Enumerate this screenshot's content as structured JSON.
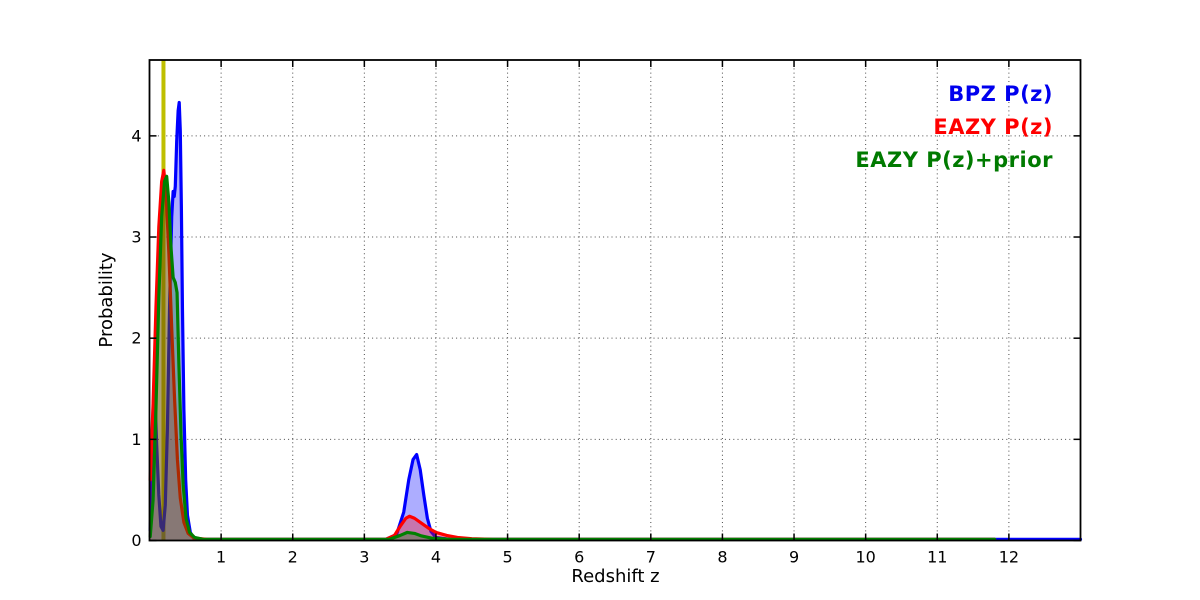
{
  "legend": {
    "position": "upper-right",
    "entries": [
      {
        "label": "BPZ P(z)",
        "color": "#0000ee"
      },
      {
        "label": "EAZY P(z)",
        "color": "#ff0000"
      },
      {
        "label": "EAZY P(z)+prior",
        "color": "#007a00"
      }
    ]
  },
  "chart_data": {
    "type": "line",
    "title": "",
    "xlabel": "Redshift z",
    "ylabel": "Probability",
    "xlim": [
      0,
      13
    ],
    "ylim": [
      0,
      4.75
    ],
    "xticks": [
      1,
      2,
      3,
      4,
      5,
      6,
      7,
      8,
      9,
      10,
      11,
      12
    ],
    "yticks": [
      0,
      1,
      2,
      3,
      4
    ],
    "grid": "dotted",
    "grid_color": "#4a4a4a",
    "axis_color": "#000000",
    "background": "#ffffff",
    "vline": {
      "x": 0.195,
      "color": "#bfbf00",
      "name": "spec-z-marker"
    },
    "series": [
      {
        "name": "BPZ P(z)",
        "color": "#0000ff",
        "fill_opacity": 0.32,
        "points": [
          [
            0.01,
            0.1
          ],
          [
            0.03,
            0.55
          ],
          [
            0.05,
            1.3
          ],
          [
            0.065,
            1.5
          ],
          [
            0.08,
            1.35
          ],
          [
            0.1,
            0.95
          ],
          [
            0.13,
            0.45
          ],
          [
            0.16,
            0.14
          ],
          [
            0.19,
            0.1
          ],
          [
            0.22,
            0.35
          ],
          [
            0.25,
            1.1
          ],
          [
            0.28,
            2.3
          ],
          [
            0.31,
            3.2
          ],
          [
            0.33,
            3.45
          ],
          [
            0.345,
            3.4
          ],
          [
            0.36,
            3.5
          ],
          [
            0.38,
            3.95
          ],
          [
            0.4,
            4.25
          ],
          [
            0.415,
            4.33
          ],
          [
            0.43,
            4.05
          ],
          [
            0.445,
            3.3
          ],
          [
            0.46,
            2.3
          ],
          [
            0.48,
            1.3
          ],
          [
            0.505,
            0.6
          ],
          [
            0.53,
            0.25
          ],
          [
            0.57,
            0.08
          ],
          [
            0.62,
            0.02
          ],
          [
            0.7,
            0.012
          ],
          [
            1.5,
            0.012
          ],
          [
            3.3,
            0.012
          ],
          [
            3.45,
            0.06
          ],
          [
            3.55,
            0.28
          ],
          [
            3.62,
            0.6
          ],
          [
            3.68,
            0.8
          ],
          [
            3.73,
            0.85
          ],
          [
            3.78,
            0.7
          ],
          [
            3.83,
            0.45
          ],
          [
            3.88,
            0.22
          ],
          [
            3.93,
            0.09
          ],
          [
            4.0,
            0.03
          ],
          [
            4.2,
            0.012
          ],
          [
            13.0,
            0.012
          ]
        ]
      },
      {
        "name": "EAZY P(z)",
        "color": "#ff0000",
        "fill_opacity": 0.32,
        "points": [
          [
            0.01,
            0.6
          ],
          [
            0.05,
            1.35
          ],
          [
            0.09,
            2.3
          ],
          [
            0.13,
            3.1
          ],
          [
            0.17,
            3.55
          ],
          [
            0.2,
            3.66
          ],
          [
            0.23,
            3.45
          ],
          [
            0.27,
            2.85
          ],
          [
            0.31,
            2.1
          ],
          [
            0.35,
            1.4
          ],
          [
            0.39,
            0.8
          ],
          [
            0.43,
            0.42
          ],
          [
            0.48,
            0.18
          ],
          [
            0.54,
            0.07
          ],
          [
            0.62,
            0.025
          ],
          [
            0.8,
            0.012
          ],
          [
            3.3,
            0.012
          ],
          [
            3.42,
            0.05
          ],
          [
            3.5,
            0.14
          ],
          [
            3.58,
            0.22
          ],
          [
            3.63,
            0.24
          ],
          [
            3.7,
            0.22
          ],
          [
            3.8,
            0.17
          ],
          [
            3.9,
            0.12
          ],
          [
            4.0,
            0.08
          ],
          [
            4.15,
            0.05
          ],
          [
            4.3,
            0.03
          ],
          [
            4.5,
            0.018
          ],
          [
            4.8,
            0.012
          ],
          [
            11.8,
            0.012
          ]
        ]
      },
      {
        "name": "EAZY P(z)+prior",
        "color": "#008000",
        "fill_opacity": 0.32,
        "points": [
          [
            0.01,
            0.04
          ],
          [
            0.05,
            0.4
          ],
          [
            0.09,
            1.3
          ],
          [
            0.13,
            2.4
          ],
          [
            0.17,
            3.2
          ],
          [
            0.21,
            3.55
          ],
          [
            0.24,
            3.6
          ],
          [
            0.27,
            3.35
          ],
          [
            0.3,
            2.9
          ],
          [
            0.33,
            2.6
          ],
          [
            0.36,
            2.55
          ],
          [
            0.385,
            2.45
          ],
          [
            0.41,
            1.75
          ],
          [
            0.44,
            1.05
          ],
          [
            0.47,
            0.55
          ],
          [
            0.51,
            0.22
          ],
          [
            0.56,
            0.08
          ],
          [
            0.63,
            0.03
          ],
          [
            0.75,
            0.012
          ],
          [
            3.35,
            0.012
          ],
          [
            3.5,
            0.05
          ],
          [
            3.6,
            0.08
          ],
          [
            3.7,
            0.07
          ],
          [
            3.8,
            0.045
          ],
          [
            3.95,
            0.022
          ],
          [
            4.2,
            0.012
          ],
          [
            11.8,
            0.012
          ]
        ]
      }
    ]
  }
}
